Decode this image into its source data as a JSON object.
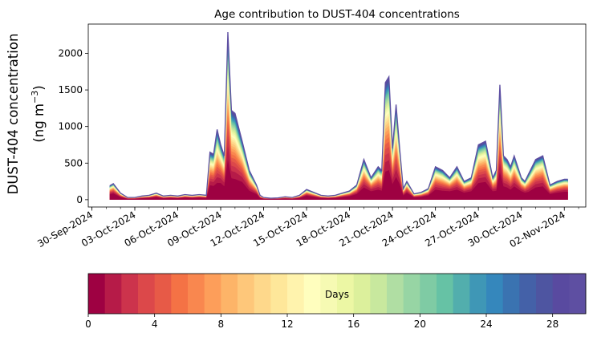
{
  "chart_data": {
    "type": "area",
    "title": "Age contribution to DUST-404 concentrations",
    "ylabel_line1": "DUST-404 concentration",
    "ylabel_line2": "(ng m",
    "ylabel_sup": "−3",
    "ylabel_close": ")",
    "xlabel": "",
    "ylim": [
      -100,
      2400
    ],
    "xlim": [
      "2024-09-29T18:00",
      "2024-11-03T12:00"
    ],
    "y_ticks": [
      "0",
      "500",
      "1000",
      "1500",
      "2000"
    ],
    "x_ticks": [
      "30-Sep-2024",
      "03-Oct-2024",
      "06-Oct-2024",
      "09-Oct-2024",
      "12-Oct-2024",
      "15-Oct-2024",
      "18-Oct-2024",
      "21-Oct-2024",
      "24-Oct-2024",
      "27-Oct-2024",
      "30-Oct-2024",
      "02-Nov-2024"
    ],
    "stack_series_count": 30,
    "total": {
      "x": [
        "2024-10-01T06:00",
        "2024-10-01T12:00",
        "2024-10-02T00:00",
        "2024-10-02T12:00",
        "2024-10-03T00:00",
        "2024-10-03T12:00",
        "2024-10-04T00:00",
        "2024-10-04T12:00",
        "2024-10-05T00:00",
        "2024-10-05T12:00",
        "2024-10-06T00:00",
        "2024-10-06T12:00",
        "2024-10-07T00:00",
        "2024-10-07T12:00",
        "2024-10-08T00:00",
        "2024-10-08T06:00",
        "2024-10-08T12:00",
        "2024-10-08T18:00",
        "2024-10-09T00:00",
        "2024-10-09T06:00",
        "2024-10-09T12:00",
        "2024-10-09T18:00",
        "2024-10-10T00:00",
        "2024-10-10T12:00",
        "2024-10-11T00:00",
        "2024-10-11T12:00",
        "2024-10-11T18:00",
        "2024-10-12T00:00",
        "2024-10-12T12:00",
        "2024-10-13T00:00",
        "2024-10-13T12:00",
        "2024-10-14T00:00",
        "2024-10-14T12:00",
        "2024-10-15T00:00",
        "2024-10-15T12:00",
        "2024-10-16T00:00",
        "2024-10-16T12:00",
        "2024-10-17T00:00",
        "2024-10-17T12:00",
        "2024-10-18T00:00",
        "2024-10-18T12:00",
        "2024-10-19T00:00",
        "2024-10-19T12:00",
        "2024-10-20T00:00",
        "2024-10-20T06:00",
        "2024-10-20T12:00",
        "2024-10-20T18:00",
        "2024-10-21T00:00",
        "2024-10-21T06:00",
        "2024-10-21T12:00",
        "2024-10-21T18:00",
        "2024-10-22T00:00",
        "2024-10-22T12:00",
        "2024-10-23T00:00",
        "2024-10-23T12:00",
        "2024-10-24T00:00",
        "2024-10-24T12:00",
        "2024-10-25T00:00",
        "2024-10-25T12:00",
        "2024-10-26T00:00",
        "2024-10-26T12:00",
        "2024-10-27T00:00",
        "2024-10-27T12:00",
        "2024-10-28T00:00",
        "2024-10-28T06:00",
        "2024-10-28T12:00",
        "2024-10-28T18:00",
        "2024-10-29T00:00",
        "2024-10-29T06:00",
        "2024-10-29T12:00",
        "2024-10-30T00:00",
        "2024-10-30T06:00",
        "2024-10-30T12:00",
        "2024-10-31T00:00",
        "2024-10-31T12:00",
        "2024-11-01T00:00",
        "2024-11-01T12:00",
        "2024-11-02T00:00",
        "2024-11-02T06:00"
      ],
      "y": [
        190,
        220,
        90,
        30,
        30,
        50,
        60,
        90,
        50,
        60,
        50,
        70,
        60,
        70,
        60,
        650,
        620,
        960,
        750,
        600,
        2290,
        1220,
        1180,
        800,
        400,
        200,
        60,
        30,
        20,
        25,
        40,
        30,
        60,
        140,
        100,
        60,
        50,
        60,
        90,
        120,
        200,
        550,
        300,
        450,
        400,
        1600,
        1680,
        700,
        1300,
        700,
        150,
        250,
        80,
        100,
        150,
        450,
        400,
        300,
        450,
        250,
        300,
        750,
        800,
        300,
        400,
        1570,
        600,
        550,
        450,
        600,
        300,
        250,
        350,
        550,
        600,
        200,
        250,
        280,
        280
      ]
    },
    "colorbar": {
      "label": "Days",
      "min": 0,
      "max": 30,
      "ticks": [
        "0",
        "4",
        "8",
        "12",
        "16",
        "20",
        "24",
        "28"
      ],
      "colors": [
        "#9e0142",
        "#b61b48",
        "#cc334c",
        "#dc484a",
        "#e75a47",
        "#f47245",
        "#f9874f",
        "#fd9e5a",
        "#fdb468",
        "#fec77a",
        "#fed88b",
        "#fee79a",
        "#fff3ad",
        "#fffebe",
        "#f6fab3",
        "#ecf7a4",
        "#dcf09c",
        "#c8e89e",
        "#b0dea3",
        "#97d5a4",
        "#7fcba4",
        "#66c2a5",
        "#52aead",
        "#3f97b6",
        "#3587bc",
        "#3a73b1",
        "#4461a8",
        "#4e55a1",
        "#594aa0",
        "#5e4fa2"
      ]
    }
  }
}
